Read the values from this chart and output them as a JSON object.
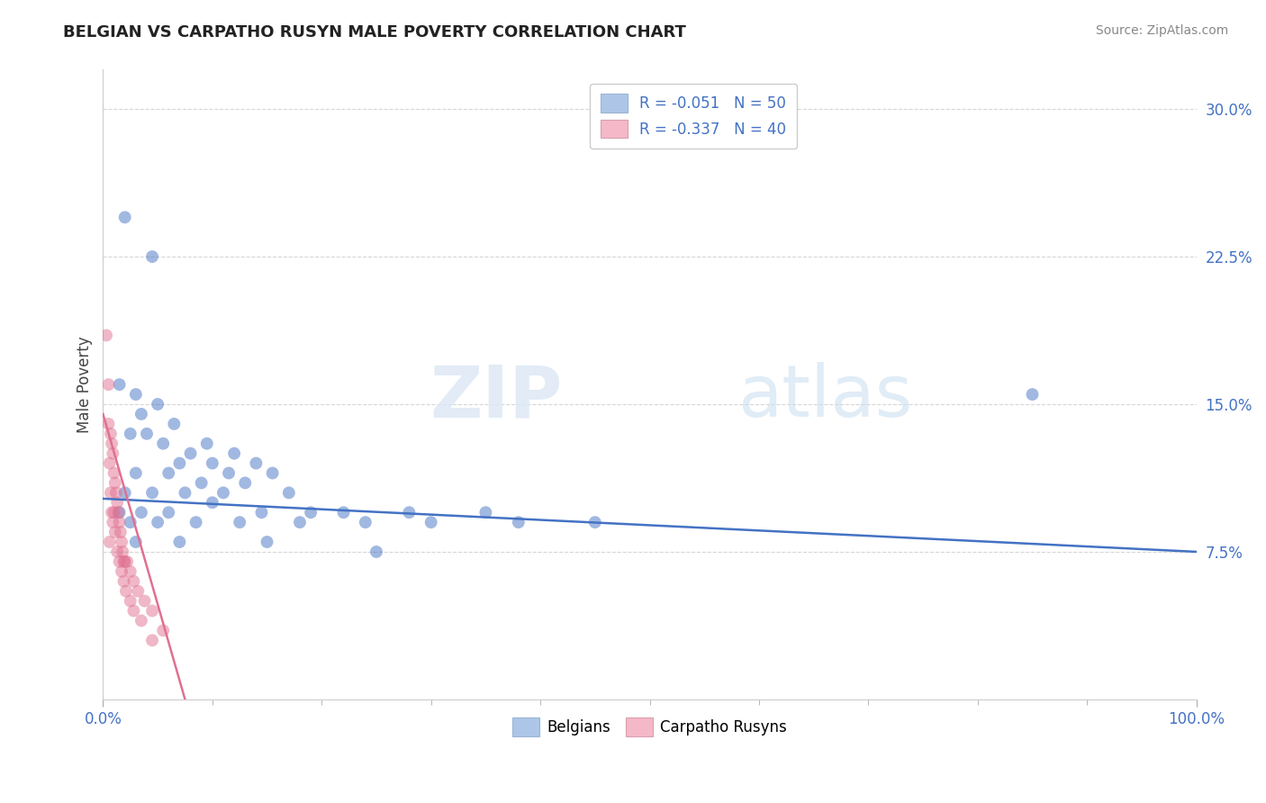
{
  "title": "BELGIAN VS CARPATHO RUSYN MALE POVERTY CORRELATION CHART",
  "source": "Source: ZipAtlas.com",
  "ylabel": "Male Poverty",
  "xlim": [
    0,
    100
  ],
  "ylim": [
    0,
    32
  ],
  "yticks": [
    7.5,
    15.0,
    22.5,
    30.0
  ],
  "ytick_labels": [
    "7.5%",
    "15.0%",
    "22.5%",
    "30.0%"
  ],
  "xticks": [
    0,
    100
  ],
  "xtick_labels": [
    "0.0%",
    "100.0%"
  ],
  "legend_entries": [
    {
      "label": "R = -0.051   N = 50",
      "color": "#adc6e8"
    },
    {
      "label": "R = -0.337   N = 40",
      "color": "#f4b8c8"
    }
  ],
  "legend_bottom": [
    {
      "label": "Belgians",
      "color": "#adc6e8"
    },
    {
      "label": "Carpatho Rusyns",
      "color": "#f4b8c8"
    }
  ],
  "watermark_zip": "ZIP",
  "watermark_atlas": "atlas",
  "blue_scatter": [
    [
      2.0,
      24.5
    ],
    [
      4.5,
      22.5
    ],
    [
      1.5,
      16.0
    ],
    [
      3.0,
      15.5
    ],
    [
      3.5,
      14.5
    ],
    [
      5.0,
      15.0
    ],
    [
      6.5,
      14.0
    ],
    [
      2.5,
      13.5
    ],
    [
      4.0,
      13.5
    ],
    [
      5.5,
      13.0
    ],
    [
      8.0,
      12.5
    ],
    [
      9.5,
      13.0
    ],
    [
      7.0,
      12.0
    ],
    [
      10.0,
      12.0
    ],
    [
      11.5,
      11.5
    ],
    [
      12.0,
      12.5
    ],
    [
      14.0,
      12.0
    ],
    [
      3.0,
      11.5
    ],
    [
      6.0,
      11.5
    ],
    [
      9.0,
      11.0
    ],
    [
      13.0,
      11.0
    ],
    [
      15.5,
      11.5
    ],
    [
      2.0,
      10.5
    ],
    [
      4.5,
      10.5
    ],
    [
      7.5,
      10.5
    ],
    [
      11.0,
      10.5
    ],
    [
      17.0,
      10.5
    ],
    [
      1.5,
      9.5
    ],
    [
      3.5,
      9.5
    ],
    [
      6.0,
      9.5
    ],
    [
      10.0,
      10.0
    ],
    [
      14.5,
      9.5
    ],
    [
      19.0,
      9.5
    ],
    [
      22.0,
      9.5
    ],
    [
      28.0,
      9.5
    ],
    [
      35.0,
      9.5
    ],
    [
      2.5,
      9.0
    ],
    [
      5.0,
      9.0
    ],
    [
      8.5,
      9.0
    ],
    [
      12.5,
      9.0
    ],
    [
      18.0,
      9.0
    ],
    [
      24.0,
      9.0
    ],
    [
      30.0,
      9.0
    ],
    [
      38.0,
      9.0
    ],
    [
      45.0,
      9.0
    ],
    [
      3.0,
      8.0
    ],
    [
      7.0,
      8.0
    ],
    [
      15.0,
      8.0
    ],
    [
      25.0,
      7.5
    ],
    [
      85.0,
      15.5
    ]
  ],
  "pink_scatter": [
    [
      0.3,
      18.5
    ],
    [
      0.5,
      16.0
    ],
    [
      0.5,
      14.0
    ],
    [
      0.7,
      13.5
    ],
    [
      0.8,
      13.0
    ],
    [
      0.9,
      12.5
    ],
    [
      0.6,
      12.0
    ],
    [
      1.0,
      11.5
    ],
    [
      1.1,
      11.0
    ],
    [
      0.7,
      10.5
    ],
    [
      1.2,
      10.5
    ],
    [
      1.3,
      10.0
    ],
    [
      0.8,
      9.5
    ],
    [
      1.0,
      9.5
    ],
    [
      1.4,
      9.5
    ],
    [
      1.5,
      9.0
    ],
    [
      0.9,
      9.0
    ],
    [
      1.6,
      8.5
    ],
    [
      1.1,
      8.5
    ],
    [
      1.7,
      8.0
    ],
    [
      0.6,
      8.0
    ],
    [
      1.8,
      7.5
    ],
    [
      1.3,
      7.5
    ],
    [
      1.9,
      7.0
    ],
    [
      2.0,
      7.0
    ],
    [
      1.5,
      7.0
    ],
    [
      2.2,
      7.0
    ],
    [
      1.7,
      6.5
    ],
    [
      2.5,
      6.5
    ],
    [
      1.9,
      6.0
    ],
    [
      2.8,
      6.0
    ],
    [
      2.1,
      5.5
    ],
    [
      3.2,
      5.5
    ],
    [
      2.5,
      5.0
    ],
    [
      3.8,
      5.0
    ],
    [
      2.8,
      4.5
    ],
    [
      4.5,
      4.5
    ],
    [
      3.5,
      4.0
    ],
    [
      5.5,
      3.5
    ],
    [
      4.5,
      3.0
    ]
  ],
  "blue_line": {
    "x0": 0,
    "x1": 100,
    "y0": 10.2,
    "y1": 7.5
  },
  "pink_line": {
    "x0": 0.0,
    "x1": 7.5,
    "y0": 14.5,
    "y1": 0
  },
  "bg_color": "#ffffff",
  "scatter_alpha": 0.5,
  "scatter_size": 100,
  "blue_color": "#4472c4",
  "pink_color": "#e07090",
  "grid_color": "#cccccc",
  "title_color": "#222222",
  "axis_label_color": "#444444",
  "tick_color": "#4472c4"
}
